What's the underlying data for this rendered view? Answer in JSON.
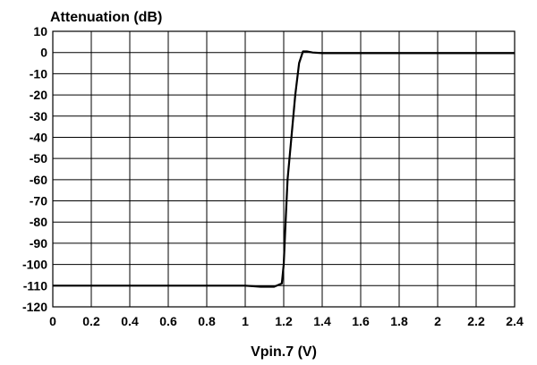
{
  "chart_data": {
    "type": "line",
    "ylabel": "Attenuation (dB)",
    "xlabel": "Vpin.7 (V)",
    "xlim": [
      0,
      2.4
    ],
    "ylim": [
      -120,
      10
    ],
    "x_ticks": [
      "0",
      "0.2",
      "0.4",
      "0.6",
      "0.8",
      "1",
      "1.2",
      "1.4",
      "1.6",
      "1.8",
      "2",
      "2.2",
      "2.4"
    ],
    "y_ticks": [
      "10",
      "0",
      "-10",
      "-20",
      "-30",
      "-40",
      "-50",
      "-60",
      "-70",
      "-80",
      "-90",
      "-100",
      "-110",
      "-120"
    ],
    "grid": true,
    "legend": "none",
    "series": [
      {
        "color": "#000000",
        "x": [
          0,
          0.5,
          1.0,
          1.08,
          1.15,
          1.19,
          1.2,
          1.21,
          1.22,
          1.24,
          1.26,
          1.28,
          1.3,
          1.32,
          1.35,
          1.4,
          2.0,
          2.4
        ],
        "y": [
          -110,
          -110,
          -110,
          -110.5,
          -110.5,
          -109,
          -100,
          -80,
          -60,
          -40,
          -20,
          -5,
          0.5,
          0.5,
          0,
          -0.3,
          -0.3,
          -0.3
        ]
      }
    ]
  }
}
